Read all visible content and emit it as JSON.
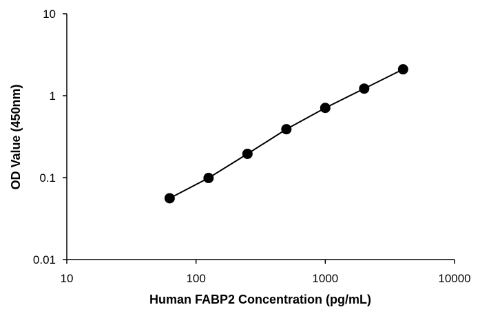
{
  "chart_data": {
    "type": "scatter",
    "title": "",
    "xlabel": "Human FABP2 Concentration (pg/mL)",
    "ylabel": "OD Value (450nm)",
    "x_scale": "log",
    "y_scale": "log",
    "xlim": [
      10,
      10000
    ],
    "ylim": [
      0.01,
      10
    ],
    "x_ticks": [
      {
        "value": 10,
        "label": "10"
      },
      {
        "value": 100,
        "label": "100"
      },
      {
        "value": 1000,
        "label": "1000"
      },
      {
        "value": 10000,
        "label": "10000"
      }
    ],
    "y_ticks": [
      {
        "value": 0.01,
        "label": "0.01"
      },
      {
        "value": 0.1,
        "label": "0.1"
      },
      {
        "value": 1,
        "label": "1"
      },
      {
        "value": 10,
        "label": "10"
      }
    ],
    "grid": false,
    "legend": "none",
    "connect_points": true,
    "series": [
      {
        "color": "#000000",
        "x": [
          62.5,
          125,
          250,
          500,
          1000,
          2000,
          4000
        ],
        "y": [
          0.056,
          0.099,
          0.195,
          0.39,
          0.71,
          1.22,
          2.1
        ]
      }
    ]
  }
}
